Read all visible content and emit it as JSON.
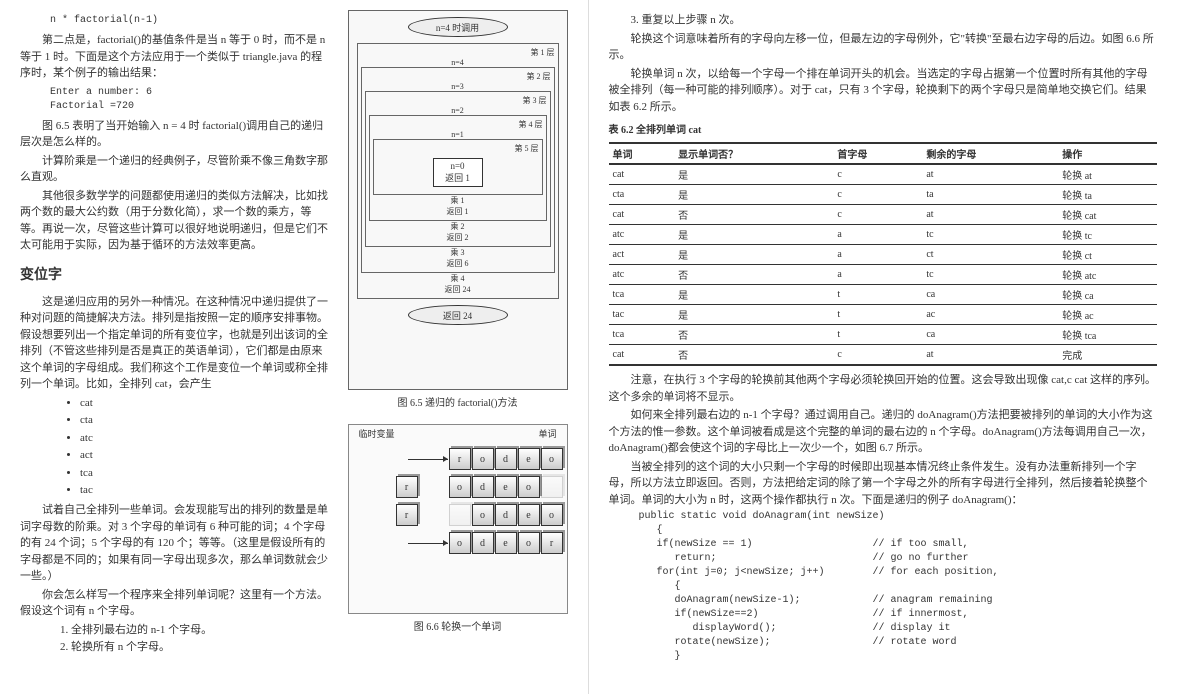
{
  "left": {
    "code_top": "n * factorial(n-1)",
    "p1": "第二点是，factorial()的基值条件是当 n 等于 0 时，而不是 n 等于 1 时。下面是这个方法应用于一个类似于 triangle.java 的程序时，某个例子的输出结果：",
    "code_output": "Enter a number: 6\nFactorial =720",
    "p2": "图 6.5 表明了当开始输入 n = 4 时 factorial()调用自己的递归层次是怎么样的。",
    "p3": "计算阶乘是一个递归的经典例子，尽管阶乘不像三角数字那么直观。",
    "p4": "其他很多数学学的问题都使用递归的类似方法解决，比如找两个数的最大公约数（用于分数化简），求一个数的乘方，等等。再说一次，尽管这些计算可以很好地说明递归，但是它们不太可能用于实际，因为基于循环的方法效率更高。",
    "h_anagram": "变位字",
    "p5": "这是递归应用的另外一种情况。在这种情况中递归提供了一种对问题的简捷解决方法。排列是指按照一定的顺序安排事物。假设想要列出一个指定单词的所有变位字，也就是列出该词的全排列（不管这些排列是否是真正的英语单词），它们都是由原来这个单词的字母组成。我们称这个工作是变位一个单词或称全排列一个单词。比如，全排列 cat，会产生",
    "bullets": [
      "cat",
      "cta",
      "atc",
      "act",
      "tca",
      "tac"
    ],
    "p6": "试着自己全排列一些单词。会发现能写出的排列的数量是单词字母数的阶乘。对 3 个字母的单词有 6 种可能的词；4 个字母的有 24 个词；5 个字母的有 120 个；等等。（这里是假设所有的字母都是不同的；如果有同一字母出现多次，那么单词数就会少一些。）",
    "p7": "你会怎么样写一个程序来全排列单词呢？这里有一个方法。假设这个词有 n 个字母。",
    "steps": [
      "1. 全排列最右边的 n-1 个字母。",
      "2. 轮换所有 n 个字母。"
    ],
    "fig65": {
      "top_oval": "n=4 时调用",
      "layers": [
        "第 1 层",
        "n=4",
        "第 2 层",
        "n=3",
        "第 3 层",
        "n=2",
        "第 4 层",
        "n=1",
        "第 5 层",
        "n=0",
        "返回 1"
      ],
      "mults": [
        "乘 1",
        "返回 1",
        "乘 2",
        "返回 2",
        "乘 3",
        "返回 6",
        "乘 4",
        "返回 24"
      ],
      "bottom_oval": "返回 24",
      "caption": "图 6.5  递归的 factorial()方法"
    },
    "fig66": {
      "label_temp": "临时变量",
      "label_word": "单词",
      "rows": [
        {
          "temp": "",
          "cells": [
            "r",
            "o",
            "d",
            "e",
            "o"
          ]
        },
        {
          "temp": "r",
          "cells": [
            "o",
            "d",
            "e",
            "o",
            " "
          ]
        },
        {
          "temp": "r",
          "cells": [
            " ",
            "o",
            "d",
            "e",
            "o"
          ]
        },
        {
          "temp": "",
          "cells": [
            "",
            "o",
            "d",
            "e",
            "o",
            "r"
          ]
        }
      ],
      "caption": "图 6.6  轮换一个单词"
    }
  },
  "right": {
    "step3": "3. 重复以上步骤 n 次。",
    "p1": "轮换这个词意味着所有的字母向左移一位，但最左边的字母例外，它\"转换\"至最右边字母的后边。如图 6.6 所示。",
    "p2": "轮换单词 n 次，以给每一个字母一个排在单词开头的机会。当选定的字母占据第一个位置时所有其他的字母被全排列（每一种可能的排列顺序）。对于 cat，只有 3 个字母，轮换剩下的两个字母只是简单地交换它们。结果如表 6.2 所示。",
    "table_title": "表 6.2  全排列单词 cat",
    "table_headers": [
      "单词",
      "显示单词否？",
      "首字母",
      "剩余的字母",
      "操作"
    ],
    "table_rows": [
      [
        "cat",
        "是",
        "c",
        "at",
        "轮换 at"
      ],
      [
        "cta",
        "是",
        "c",
        "ta",
        "轮换 ta"
      ],
      [
        "cat",
        "否",
        "c",
        "at",
        "轮换 cat"
      ],
      [
        "atc",
        "是",
        "a",
        "tc",
        "轮换 tc"
      ],
      [
        "act",
        "是",
        "a",
        "ct",
        "轮换 ct"
      ],
      [
        "atc",
        "否",
        "a",
        "tc",
        "轮换 atc"
      ],
      [
        "tca",
        "是",
        "t",
        "ca",
        "轮换 ca"
      ],
      [
        "tac",
        "是",
        "t",
        "ac",
        "轮换 ac"
      ],
      [
        "tca",
        "否",
        "t",
        "ca",
        "轮换 tca"
      ],
      [
        "cat",
        "否",
        "c",
        "at",
        "完成"
      ]
    ],
    "p3": "注意，在执行 3 个字母的轮换前其他两个字母必须轮换回开始的位置。这会导致出现像 cat,c cat 这样的序列。这个多余的单词将不显示。",
    "p4": "如何来全排列最右边的 n-1 个字母？通过调用自己。递归的 doAnagram()方法把要被排列的单词的大小作为这个方法的惟一参数。这个单词被看成是这个完整的单词的最右边的 n 个字母。doAnagram()方法每调用自己一次，doAnagram()都会使这个词的字母比上一次少一个，如图 6.7 所示。",
    "p5": "当被全排列的这个词的大小只剩一个字母的时候即出现基本情况终止条件发生。没有办法重新排列一个字母，所以方法立即返回。否则，方法把给定词的除了第一个字母之外的所有字母进行全排列，然后接着轮换整个单词。单词的大小为 n 时，这两个操作都执行 n 次。下面是递归的例子 doAnagram()：",
    "code": "public static void doAnagram(int newSize)\n   {\n   if(newSize == 1)                    // if too small,\n      return;                          // go no further\n   for(int j=0; j<newSize; j++)        // for each position,\n      {\n      doAnagram(newSize-1);            // anagram remaining\n      if(newSize==2)                   // if innermost,\n         displayWord();                // display it\n      rotate(newSize);                 // rotate word\n      }"
  }
}
